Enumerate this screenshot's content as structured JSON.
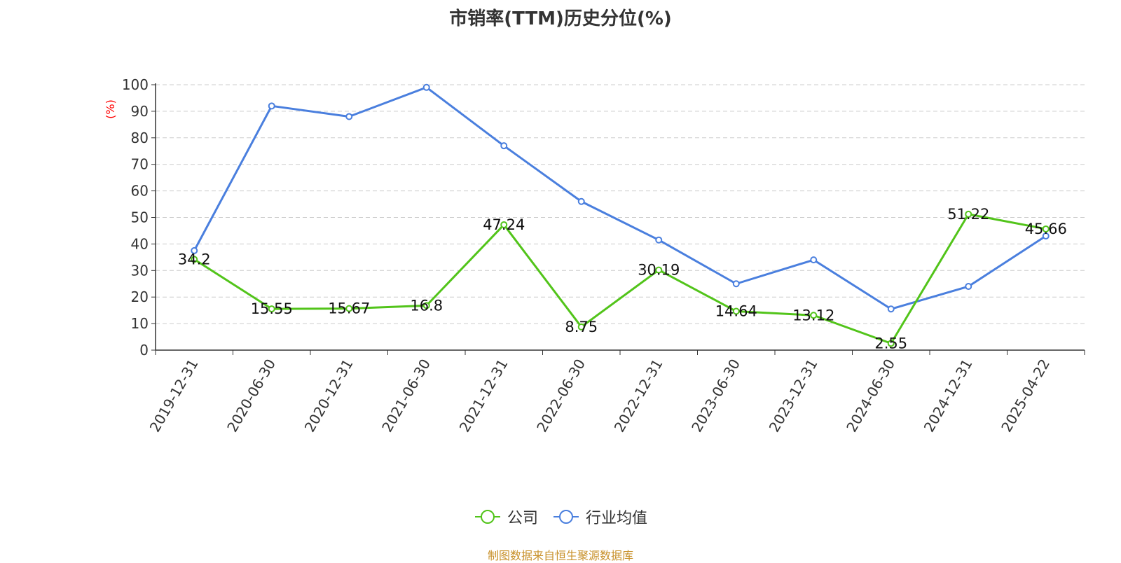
{
  "chart_data": {
    "type": "line",
    "title": "市销率(TTM)历史分位(%)",
    "ylabel": "(%)",
    "xlabel": "",
    "categories": [
      "2019-12-31",
      "2020-06-30",
      "2020-12-31",
      "2021-06-30",
      "2021-12-31",
      "2022-06-30",
      "2022-12-31",
      "2023-06-30",
      "2023-12-31",
      "2024-06-30",
      "2024-12-31",
      "2025-04-22"
    ],
    "ylim": [
      0,
      100
    ],
    "yticks": [
      0,
      10,
      20,
      30,
      40,
      50,
      60,
      70,
      80,
      90,
      100
    ],
    "grid": true,
    "legend_position": "bottom",
    "series": [
      {
        "name": "公司",
        "color": "#52c41a",
        "labels": true,
        "values": [
          34.2,
          15.55,
          15.67,
          16.8,
          47.24,
          8.75,
          30.19,
          14.64,
          13.12,
          2.55,
          51.22,
          45.66
        ]
      },
      {
        "name": "行业均值",
        "color": "#4a7fde",
        "labels": false,
        "values": [
          37.5,
          92,
          88,
          99,
          77,
          56,
          41.5,
          25,
          34,
          15.5,
          24,
          43
        ]
      }
    ]
  },
  "footer": {
    "source": "制图数据来自恒生聚源数据库"
  }
}
